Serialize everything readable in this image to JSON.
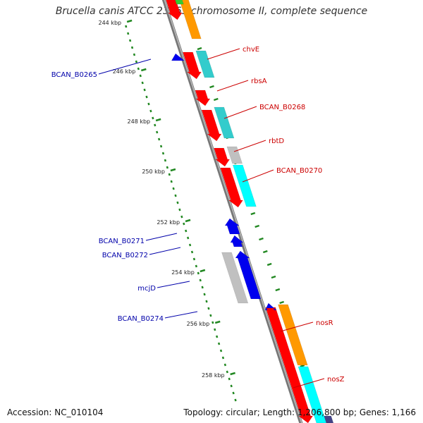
{
  "title": "Brucella canis ATCC 23365 chromosome II, complete sequence",
  "footer": {
    "accession": "Accession: NC_010104",
    "topology": "Topology: circular; Length: 1,206,800 bp; Genes: 1,166"
  },
  "colors": {
    "forward_label": "#cc0000",
    "reverse_label": "#0000aa",
    "backbone": "#888888",
    "tick": "#228822",
    "red": "#ff0000",
    "orange": "#ff9900",
    "teal": "#33cccc",
    "cyan": "#00ffff",
    "gray": "#c0c0c0",
    "blue": "#0000ee",
    "green": "#33cc33",
    "navy": "#444488"
  },
  "ruler": {
    "unit": "kbp",
    "labels": [
      "244 kbp",
      "246 kbp",
      "248 kbp",
      "250 kbp",
      "252 kbp",
      "254 kbp",
      "256 kbp",
      "258 kbp"
    ]
  },
  "labels": [
    {
      "text": "chvE",
      "strand": "forward"
    },
    {
      "text": "rbsA",
      "strand": "forward"
    },
    {
      "text": "BCAN_B0268",
      "strand": "forward"
    },
    {
      "text": "rbtD",
      "strand": "forward"
    },
    {
      "text": "BCAN_B0270",
      "strand": "forward"
    },
    {
      "text": "nosR",
      "strand": "forward"
    },
    {
      "text": "nosZ",
      "strand": "forward"
    },
    {
      "text": "BCAN_B0265",
      "strand": "reverse"
    },
    {
      "text": "BCAN_B0271",
      "strand": "reverse"
    },
    {
      "text": "BCAN_B0272",
      "strand": "reverse"
    },
    {
      "text": "mcjD",
      "strand": "reverse"
    },
    {
      "text": "BCAN_B0274",
      "strand": "reverse"
    }
  ]
}
